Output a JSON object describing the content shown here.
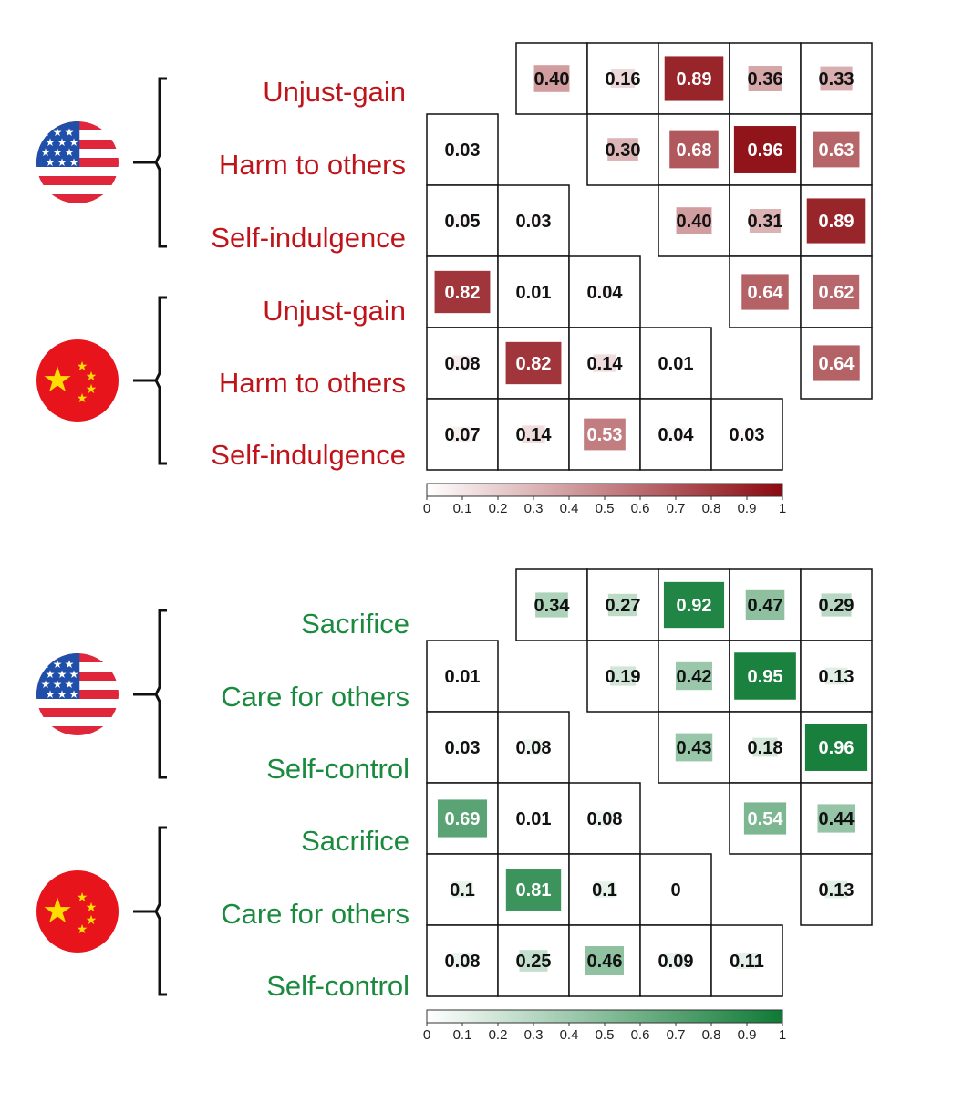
{
  "chart_data": [
    {
      "type": "heatmap",
      "color": "#8b0a10",
      "row_labels": [
        "Unjust-gain",
        "Harm to others",
        "Self-indulgence",
        "Unjust-gain",
        "Harm to others",
        "Self-indulgence"
      ],
      "country_groups": [
        {
          "country": "USA",
          "rows": [
            0,
            1,
            2
          ]
        },
        {
          "country": "China",
          "rows": [
            3,
            4,
            5
          ]
        }
      ],
      "upper_triangle": [
        {
          "row": 0,
          "values": [
            "0.40",
            "0.16",
            "0.89",
            "0.36",
            "0.33"
          ]
        },
        {
          "row": 1,
          "values": [
            "0.30",
            "0.68",
            "0.96",
            "0.63"
          ]
        },
        {
          "row": 2,
          "values": [
            "0.40",
            "0.31",
            "0.89"
          ]
        },
        {
          "row": 3,
          "values": [
            "0.64",
            "0.62"
          ]
        },
        {
          "row": 4,
          "values": [
            "0.64"
          ]
        }
      ],
      "lower_triangle": [
        {
          "row": 1,
          "values": [
            "0.03"
          ]
        },
        {
          "row": 2,
          "values": [
            "0.05",
            "0.03"
          ]
        },
        {
          "row": 3,
          "values": [
            "0.82",
            "0.01",
            "0.04"
          ]
        },
        {
          "row": 4,
          "values": [
            "0.08",
            "0.82",
            "0.14",
            "0.01"
          ]
        },
        {
          "row": 5,
          "values": [
            "0.07",
            "0.14",
            "0.53",
            "0.04",
            "0.03"
          ]
        }
      ],
      "colorbar_ticks": [
        "0",
        "0.1",
        "0.2",
        "0.3",
        "0.4",
        "0.5",
        "0.6",
        "0.7",
        "0.8",
        "0.9",
        "1"
      ],
      "range": [
        0,
        1
      ]
    },
    {
      "type": "heatmap",
      "color": "#0e7a35",
      "row_labels": [
        "Sacrifice",
        "Care for others",
        "Self-control",
        "Sacrifice",
        "Care for others",
        "Self-control"
      ],
      "country_groups": [
        {
          "country": "USA",
          "rows": [
            0,
            1,
            2
          ]
        },
        {
          "country": "China",
          "rows": [
            3,
            4,
            5
          ]
        }
      ],
      "upper_triangle": [
        {
          "row": 0,
          "values": [
            "0.34",
            "0.27",
            "0.92",
            "0.47",
            "0.29"
          ]
        },
        {
          "row": 1,
          "values": [
            "0.19",
            "0.42",
            "0.95",
            "0.13"
          ]
        },
        {
          "row": 2,
          "values": [
            "0.43",
            "0.18",
            "0.96"
          ]
        },
        {
          "row": 3,
          "values": [
            "0.54",
            "0.44"
          ]
        },
        {
          "row": 4,
          "values": [
            "0.13"
          ]
        }
      ],
      "lower_triangle": [
        {
          "row": 1,
          "values": [
            "0.01"
          ]
        },
        {
          "row": 2,
          "values": [
            "0.03",
            "0.08"
          ]
        },
        {
          "row": 3,
          "values": [
            "0.69",
            "0.01",
            "0.08"
          ]
        },
        {
          "row": 4,
          "values": [
            "0.1",
            "0.81",
            "0.1",
            "0"
          ]
        },
        {
          "row": 5,
          "values": [
            "0.08",
            "0.25",
            "0.46",
            "0.09",
            "0.11"
          ]
        }
      ],
      "colorbar_ticks": [
        "0",
        "0.1",
        "0.2",
        "0.3",
        "0.4",
        "0.5",
        "0.6",
        "0.7",
        "0.8",
        "0.9",
        "1"
      ],
      "range": [
        0,
        1
      ]
    }
  ]
}
